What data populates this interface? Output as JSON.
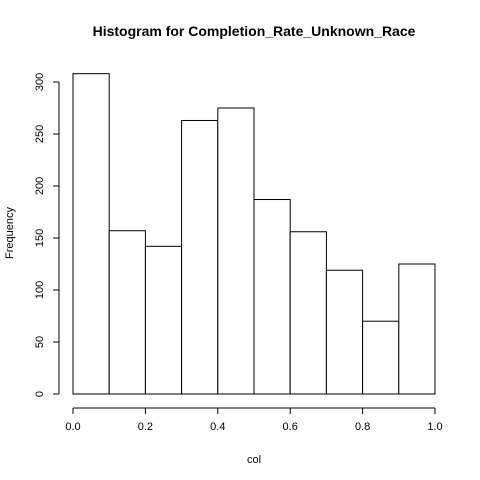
{
  "chart_data": {
    "type": "bar",
    "title": "Histogram for  Completion_Rate_Unknown_Race",
    "xlabel": "col",
    "ylabel": "Frequency",
    "bins": [
      {
        "x0": 0.0,
        "x1": 0.1,
        "count": 308
      },
      {
        "x0": 0.1,
        "x1": 0.2,
        "count": 157
      },
      {
        "x0": 0.2,
        "x1": 0.3,
        "count": 142
      },
      {
        "x0": 0.3,
        "x1": 0.4,
        "count": 263
      },
      {
        "x0": 0.4,
        "x1": 0.5,
        "count": 275
      },
      {
        "x0": 0.5,
        "x1": 0.6,
        "count": 187
      },
      {
        "x0": 0.6,
        "x1": 0.7,
        "count": 156
      },
      {
        "x0": 0.7,
        "x1": 0.8,
        "count": 119
      },
      {
        "x0": 0.8,
        "x1": 0.9,
        "count": 70
      },
      {
        "x0": 0.9,
        "x1": 1.0,
        "count": 125
      }
    ],
    "xlim": [
      0.0,
      1.0
    ],
    "ylim": [
      0,
      308
    ],
    "xticks": [
      "0.0",
      "0.2",
      "0.4",
      "0.6",
      "0.8",
      "1.0"
    ],
    "yticks": [
      "0",
      "50",
      "100",
      "150",
      "200",
      "250",
      "300"
    ],
    "grid": false
  }
}
